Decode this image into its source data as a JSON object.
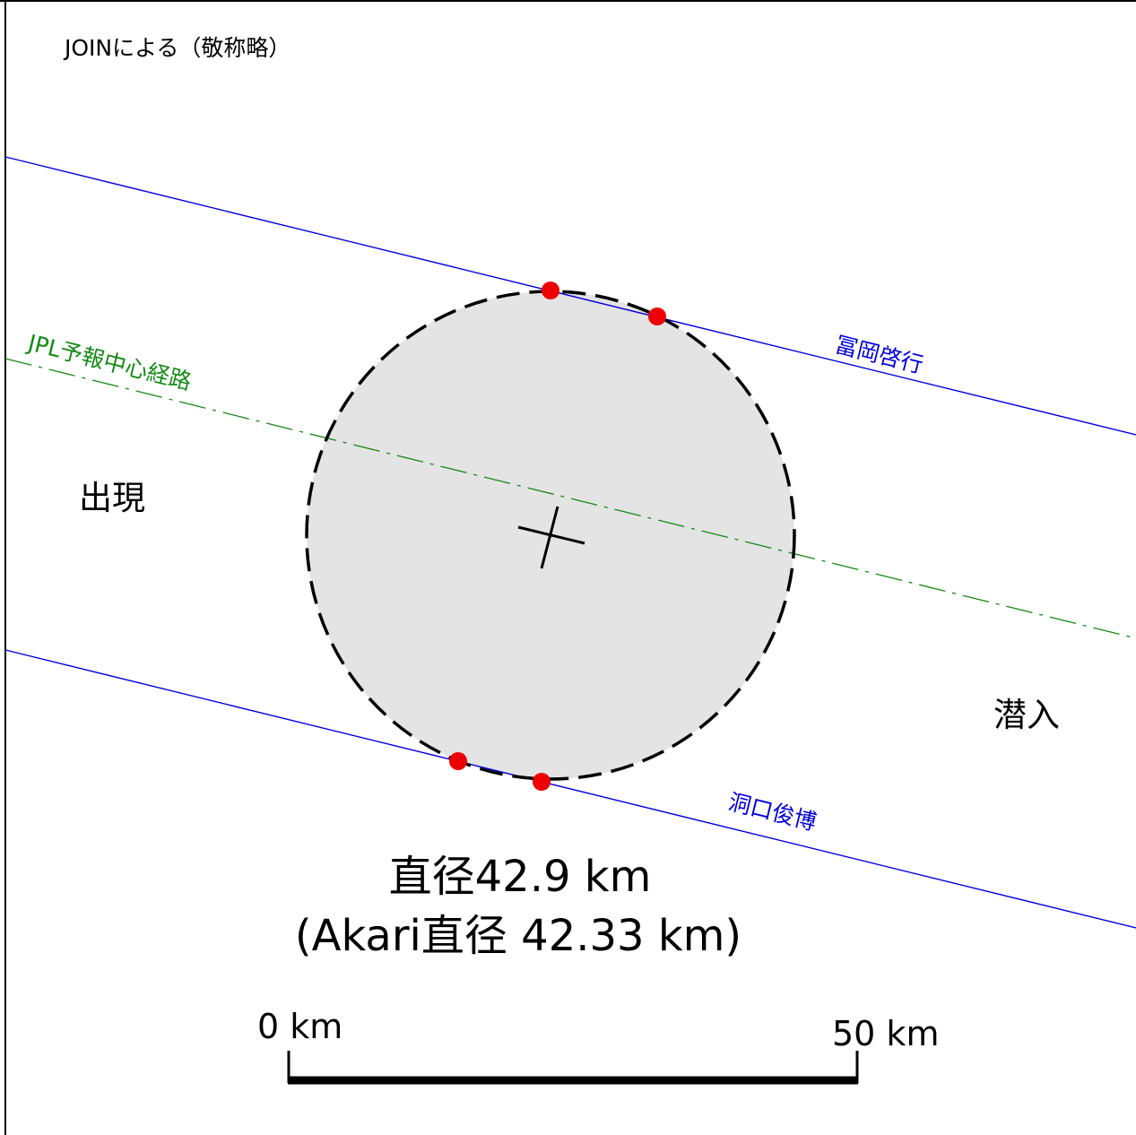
{
  "header": {
    "credit": "JOINによる（敬称略）"
  },
  "labels": {
    "reappearance": "出現",
    "disappearance": "潜入",
    "predicted_center_path": "JPL予報中心経路"
  },
  "observers": {
    "north": "冨岡啓行",
    "south": "洞口俊博"
  },
  "result": {
    "diameter": "直径42.9 km",
    "akari_diameter": "(Akari直径 42.33 km)"
  },
  "scale_bar": {
    "start_label": "0 km",
    "end_label": "50 km",
    "length_km": 50
  },
  "colors": {
    "observer_chord": "#0000dd",
    "predicted_path": "#138a13",
    "contact_point": "#ee0000",
    "asteroid_fill": "#e4e4e4",
    "outline": "#000000"
  }
}
